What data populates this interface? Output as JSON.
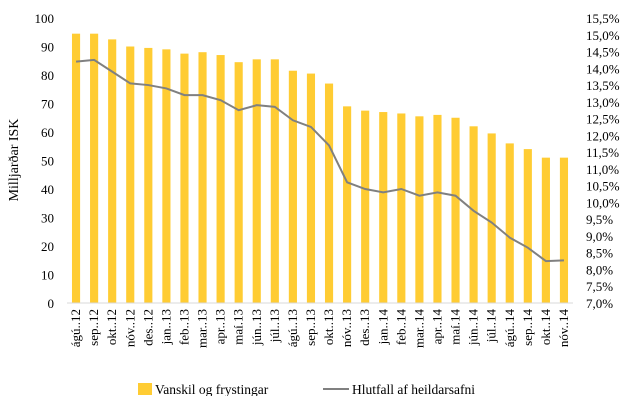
{
  "chart_data": {
    "type": "bar",
    "categories": [
      "ágú..12",
      "sep..12",
      "okt..12",
      "nóv..12",
      "des..12",
      "jan..13",
      "feb..13",
      "mar..13",
      "apr..13",
      "maí.13",
      "jún..13",
      "júl..13",
      "ágú..13",
      "sep..13",
      "okt..13",
      "nóv..13",
      "des..13",
      "jan..14",
      "feb..14",
      "mar..14",
      "apr..14",
      "maí.14",
      "jún..14",
      "júl..14",
      "ágú..14",
      "sep..14",
      "okt..14",
      "nóv..14"
    ],
    "series": [
      {
        "name": "Vanskil og frystingar",
        "type": "bar",
        "axis": "left",
        "color": "#FFCC33",
        "values": [
          94.5,
          94.5,
          92.5,
          90,
          89.5,
          89,
          87.5,
          88,
          87,
          84.5,
          85.5,
          85.5,
          81.5,
          80.5,
          77,
          69,
          67.5,
          67,
          66.5,
          65.5,
          66,
          65,
          62,
          59.5,
          56,
          54,
          51,
          51
        ]
      },
      {
        "name": "Hlutfall af heildarsafni",
        "type": "line",
        "axis": "right",
        "color": "#808080",
        "values": [
          14.2,
          14.25,
          13.9,
          13.55,
          13.5,
          13.4,
          13.2,
          13.2,
          13.05,
          12.75,
          12.9,
          12.85,
          12.45,
          12.25,
          11.7,
          10.6,
          10.4,
          10.3,
          10.4,
          10.2,
          10.3,
          10.2,
          9.75,
          9.4,
          8.95,
          8.65,
          8.25,
          8.27
        ]
      }
    ],
    "ylabel": "Milljarðar ISK",
    "xlabel": "",
    "ylim": [
      0,
      100
    ],
    "y_ticks": [
      "0",
      "10",
      "20",
      "30",
      "40",
      "50",
      "60",
      "70",
      "80",
      "90",
      "100"
    ],
    "y2lim": [
      7,
      15.5
    ],
    "y2_ticks": [
      "7,0%",
      "7,5%",
      "8,0%",
      "8,5%",
      "9,0%",
      "9,5%",
      "10,0%",
      "10,5%",
      "11,0%",
      "11,5%",
      "12,0%",
      "12,5%",
      "13,0%",
      "13,5%",
      "14,0%",
      "14,5%",
      "15,0%",
      "15,5%"
    ],
    "grid": false,
    "legend_position": "bottom"
  }
}
